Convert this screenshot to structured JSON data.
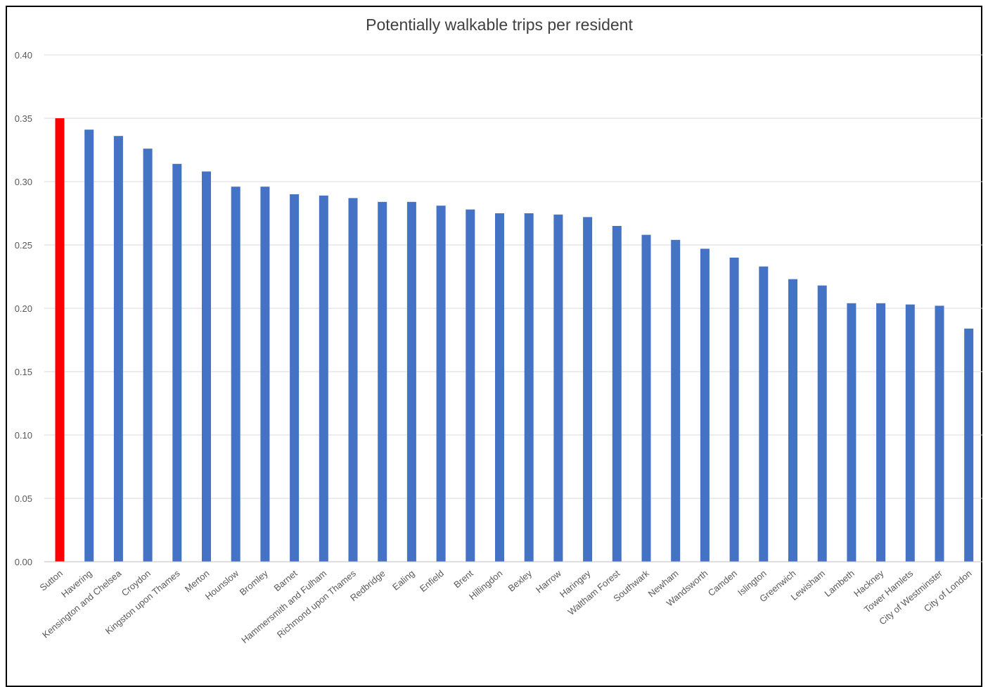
{
  "chart_data": {
    "type": "bar",
    "title": "Potentially walkable trips per resident",
    "xlabel": "",
    "ylabel": "",
    "ylim": [
      0,
      0.4
    ],
    "yticks": [
      "0.00",
      "0.05",
      "0.10",
      "0.15",
      "0.20",
      "0.25",
      "0.30",
      "0.35",
      "0.40"
    ],
    "grid": true,
    "legend": "none",
    "colors": {
      "bar": "#4472C4",
      "highlight": "#FF0000"
    },
    "highlight_category": "Sutton",
    "categories": [
      "Sutton",
      "Havering",
      "Kensington and Chelsea",
      "Croydon",
      "Kingston upon Thames",
      "Merton",
      "Hounslow",
      "Bromley",
      "Barnet",
      "Hammersmith and Fulham",
      "Richmond upon Thames",
      "Redbridge",
      "Ealing",
      "Enfield",
      "Brent",
      "Hillingdon",
      "Bexley",
      "Harrow",
      "Haringey",
      "Waltham Forest",
      "Southwark",
      "Newham",
      "Wandsworth",
      "Camden",
      "Islington",
      "Greenwich",
      "Lewisham",
      "Lambeth",
      "Hackney",
      "Tower Hamlets",
      "City of Westminster",
      "City of London"
    ],
    "values": [
      0.35,
      0.341,
      0.336,
      0.326,
      0.314,
      0.308,
      0.296,
      0.296,
      0.29,
      0.289,
      0.287,
      0.284,
      0.284,
      0.281,
      0.278,
      0.275,
      0.275,
      0.274,
      0.272,
      0.265,
      0.258,
      0.254,
      0.247,
      0.24,
      0.233,
      0.223,
      0.218,
      0.204,
      0.204,
      0.203,
      0.202,
      0.184
    ]
  }
}
